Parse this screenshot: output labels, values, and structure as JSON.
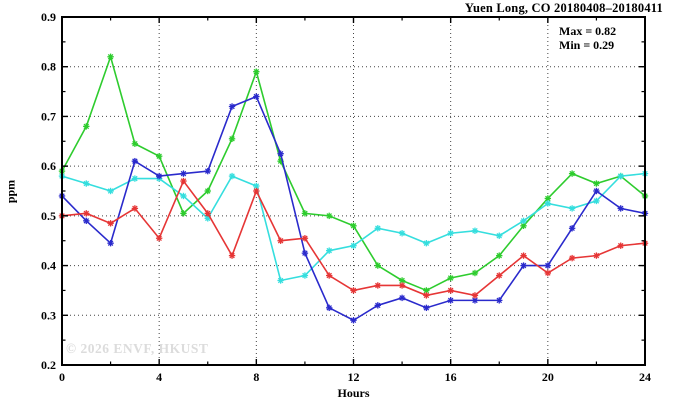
{
  "title": "Yuen Long, CO 20180408–20180411",
  "annotation": {
    "max_label": "Max = 0.82",
    "min_label": "Min = 0.29"
  },
  "watermark": "© 2026 ENVF, HKUST",
  "colors": {
    "frame": "#000000",
    "grid": "#444444",
    "watermark_gray": "#dcdcdc",
    "series_green": "#2ecc2e",
    "series_cyan": "#35dede",
    "series_blue": "#2a2acc",
    "series_red": "#e63636"
  },
  "chart_data": {
    "type": "line",
    "title": "Yuen Long, CO 20180408–20180411",
    "xlabel": "Hours",
    "ylabel": "ppm",
    "xlim": [
      0,
      24
    ],
    "ylim": [
      0.2,
      0.9
    ],
    "x_major_ticks": [
      0,
      4,
      8,
      12,
      16,
      20,
      24
    ],
    "x_minor_ticks": [
      2,
      6,
      10,
      14,
      18,
      22
    ],
    "y_major_ticks": [
      0.2,
      0.3,
      0.4,
      0.5,
      0.6,
      0.7,
      0.8,
      0.9
    ],
    "y_minor_ticks": [
      0.25,
      0.35,
      0.45,
      0.55,
      0.65,
      0.75,
      0.85
    ],
    "grid": "dotted-major",
    "legend_position": "none",
    "marker": "asterisk",
    "stat_max": 0.82,
    "stat_min": 0.29,
    "x": [
      0,
      1,
      2,
      3,
      4,
      5,
      6,
      7,
      8,
      9,
      10,
      11,
      12,
      13,
      14,
      15,
      16,
      17,
      18,
      19,
      20,
      21,
      22,
      23,
      24
    ],
    "series": [
      {
        "name": "series-green",
        "values": [
          0.59,
          0.68,
          0.82,
          0.645,
          0.62,
          0.505,
          0.55,
          0.655,
          0.79,
          0.61,
          0.505,
          0.5,
          0.48,
          0.4,
          0.37,
          0.35,
          0.375,
          0.385,
          0.42,
          0.48,
          0.535,
          0.585,
          0.565,
          0.58,
          0.54
        ]
      },
      {
        "name": "series-cyan",
        "values": [
          0.58,
          0.565,
          0.55,
          0.575,
          0.575,
          0.54,
          0.495,
          0.58,
          0.56,
          0.37,
          0.38,
          0.43,
          0.44,
          0.475,
          0.465,
          0.445,
          0.465,
          0.47,
          0.46,
          0.49,
          0.525,
          0.515,
          0.53,
          0.58,
          0.585
        ]
      },
      {
        "name": "series-blue",
        "values": [
          0.54,
          0.49,
          0.445,
          0.61,
          0.58,
          0.585,
          0.59,
          0.72,
          0.74,
          0.625,
          0.425,
          0.315,
          0.29,
          0.32,
          0.335,
          0.315,
          0.33,
          0.33,
          0.33,
          0.4,
          0.4,
          0.475,
          0.55,
          0.515,
          0.505
        ]
      },
      {
        "name": "series-red",
        "values": [
          0.5,
          0.505,
          0.485,
          0.515,
          0.455,
          0.57,
          0.505,
          0.42,
          0.55,
          0.45,
          0.455,
          0.38,
          0.35,
          0.36,
          0.36,
          0.34,
          0.35,
          0.34,
          0.38,
          0.42,
          0.385,
          0.415,
          0.42,
          0.44,
          0.445
        ]
      }
    ]
  }
}
